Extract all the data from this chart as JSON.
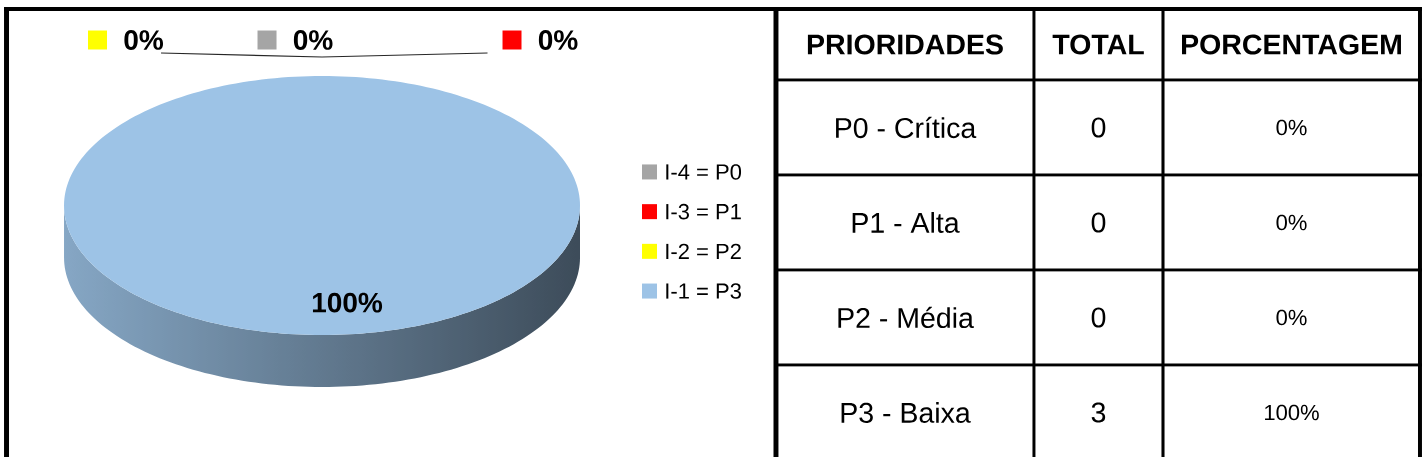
{
  "chart_data": [
    {
      "type": "pie",
      "categories": [
        "I-4 = P0",
        "I-3 = P1",
        "I-2 = P2",
        "I-1 = P3"
      ],
      "values": [
        0,
        0,
        0,
        100
      ],
      "colors": [
        "#a5a5a5",
        "#ff0000",
        "#ffff00",
        "#9dc3e6"
      ],
      "value_labels": [
        "0%",
        "0%",
        "0%",
        "100%"
      ],
      "legend": "right"
    },
    {
      "type": "other",
      "annotations": [
        "PRIORIDADES",
        "TOTAL",
        "PORCENTAGEM",
        "P0 - Crítica",
        "0",
        "0%",
        "P1 - Alta",
        "0",
        "0%",
        "P2 - Média",
        "0",
        "0%",
        "P3 - Baixa",
        "3",
        "100%"
      ]
    }
  ]
}
